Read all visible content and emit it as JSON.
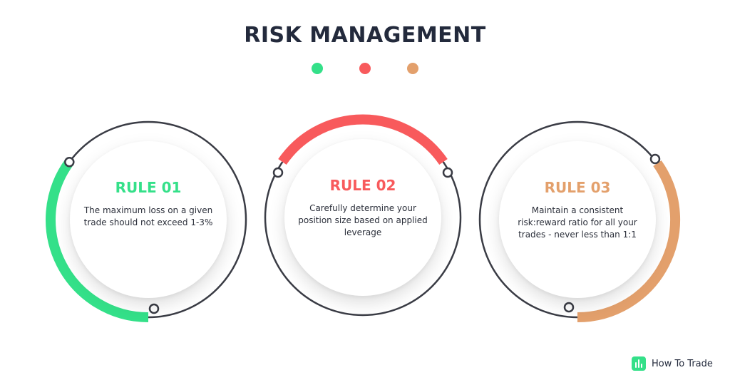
{
  "header": {
    "title": "RISK MANAGEMENT"
  },
  "colors": {
    "title": "#232a3c",
    "green": "#34e089",
    "red": "#f85a5c",
    "orange": "#e3a06c",
    "ring": "#3a3c45",
    "text": "#2b2f3a"
  },
  "rules": [
    {
      "title": "RULE 01",
      "desc_lines": [
        "The maximum loss on a given",
        "trade should not exceed 1-3%"
      ],
      "color": "#34e089"
    },
    {
      "title": "RULE 02",
      "desc_lines": [
        "Carefully determine your",
        "position size based on applied",
        "leverage"
      ],
      "color": "#f85a5c"
    },
    {
      "title": "RULE 03",
      "desc_lines": [
        "Maintain a consistent",
        "risk:reward ratio for all your",
        "trades - never less than 1:1"
      ],
      "color": "#e3a06c"
    }
  ],
  "logo": {
    "text": "How To Trade",
    "icon": "bar-chart-icon",
    "color": "#34e089"
  }
}
